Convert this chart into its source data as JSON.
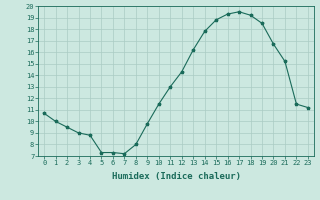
{
  "x": [
    0,
    1,
    2,
    3,
    4,
    5,
    6,
    7,
    8,
    9,
    10,
    11,
    12,
    13,
    14,
    15,
    16,
    17,
    18,
    19,
    20,
    21,
    22,
    23
  ],
  "y": [
    10.7,
    10.0,
    9.5,
    9.0,
    8.8,
    7.3,
    7.3,
    7.2,
    8.0,
    9.8,
    11.5,
    13.0,
    14.3,
    16.2,
    17.8,
    18.8,
    19.3,
    19.5,
    19.2,
    18.5,
    16.7,
    15.2,
    11.5,
    11.2
  ],
  "xlim": [
    -0.5,
    23.5
  ],
  "ylim": [
    7,
    20
  ],
  "yticks": [
    7,
    8,
    9,
    10,
    11,
    12,
    13,
    14,
    15,
    16,
    17,
    18,
    19,
    20
  ],
  "xticks": [
    0,
    1,
    2,
    3,
    4,
    5,
    6,
    7,
    8,
    9,
    10,
    11,
    12,
    13,
    14,
    15,
    16,
    17,
    18,
    19,
    20,
    21,
    22,
    23
  ],
  "xlabel": "Humidex (Indice chaleur)",
  "line_color": "#1a6b5a",
  "marker": "*",
  "marker_size": 2.5,
  "bg_color": "#cce8e0",
  "grid_color": "#aaccC4",
  "label_fontsize": 6.5,
  "tick_fontsize": 5.0
}
